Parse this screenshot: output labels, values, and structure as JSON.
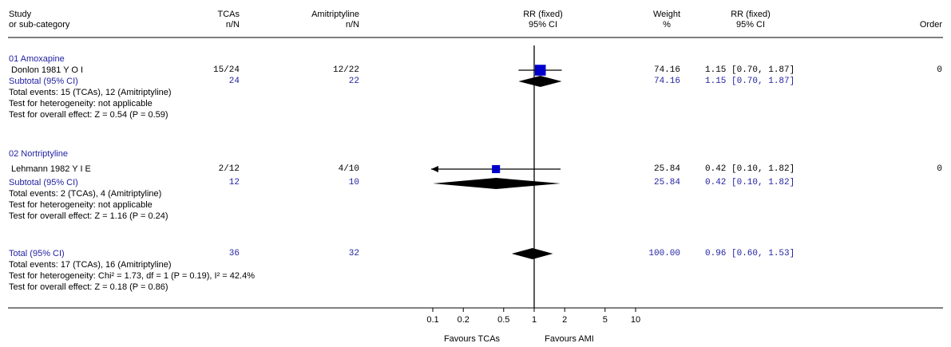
{
  "header": {
    "study_line1": "Study",
    "study_line2": "or sub-category",
    "tcas_line1": "TCAs",
    "tcas_line2": "n/N",
    "ami_line1": "Amitriptyline",
    "ami_line2": "n/N",
    "rr_line1": "RR (fixed)",
    "rr_line2": "95% CI",
    "weight_line1": "Weight",
    "weight_line2": "%",
    "rrci_line1": "RR (fixed)",
    "rrci_line2": "95% CI",
    "order": "Order"
  },
  "groups": [
    {
      "title": "01 Amoxapine",
      "study": {
        "name": "Donlon 1981 Y O I",
        "tcas": "15/24",
        "ami": "12/22",
        "weight": "74.16",
        "ci_text": "1.15 [0.70, 1.87]",
        "order": "0"
      },
      "subtotal": {
        "label": "Subtotal (95% CI)",
        "tcas": "24",
        "ami": "22",
        "weight": "74.16",
        "ci_text": "1.15 [0.70, 1.87]"
      },
      "notes": [
        "Total events: 15 (TCAs), 12 (Amitriptyline)",
        "Test for heterogeneity: not applicable",
        "Test for overall effect: Z = 0.54 (P = 0.59)"
      ]
    },
    {
      "title": "02 Nortriptyline",
      "study": {
        "name": "Lehmann 1982 Y I E",
        "tcas": "2/12",
        "ami": "4/10",
        "weight": "25.84",
        "ci_text": "0.42 [0.10, 1.82]",
        "order": "0"
      },
      "subtotal": {
        "label": "Subtotal (95% CI)",
        "tcas": "12",
        "ami": "10",
        "weight": "25.84",
        "ci_text": "0.42 [0.10, 1.82]"
      },
      "notes": [
        "Total events: 2 (TCAs), 4 (Amitriptyline)",
        "Test for heterogeneity: not applicable",
        "Test for overall effect: Z = 1.16 (P = 0.24)"
      ]
    }
  ],
  "total": {
    "label": "Total (95% CI)",
    "tcas": "36",
    "ami": "32",
    "weight": "100.00",
    "ci_text": "0.96 [0.60, 1.53]",
    "notes": [
      "Total events: 17 (TCAs), 16 (Amitriptyline)",
      "Test for heterogeneity: Chi² = 1.73, df = 1 (P = 0.19), I² = 42.4%",
      "Test for overall effect: Z = 0.18 (P = 0.86)"
    ]
  },
  "chart_data": {
    "type": "scatter",
    "scale": "log",
    "xlim": [
      0.1,
      10
    ],
    "ticks": [
      "0.1",
      "0.2",
      "0.5",
      "1",
      "2",
      "5",
      "10"
    ],
    "tick_values": [
      0.1,
      0.2,
      0.5,
      1,
      2,
      5,
      10
    ],
    "favours_left": "Favours TCAs",
    "favours_right": "Favours AMI",
    "studies": [
      {
        "name": "Donlon 1981 Y O I",
        "rr": 1.15,
        "lo": 0.7,
        "hi": 1.87,
        "weight": 74.16
      },
      {
        "name": "Lehmann 1982 Y I E",
        "rr": 0.42,
        "lo": 0.1,
        "hi": 1.82,
        "weight": 25.84,
        "arrow_left": true
      }
    ],
    "diamonds": [
      {
        "label": "Subtotal (95% CI)",
        "rr": 1.15,
        "lo": 0.7,
        "hi": 1.87
      },
      {
        "label": "Subtotal (95% CI)",
        "rr": 0.42,
        "lo": 0.1,
        "hi": 1.82
      },
      {
        "label": "Total (95% CI)",
        "rr": 0.96,
        "lo": 0.6,
        "hi": 1.53
      }
    ],
    "colors": {
      "square": "#0000cc",
      "text_blue": "#1f1fa0",
      "diamond": "#000000"
    }
  }
}
